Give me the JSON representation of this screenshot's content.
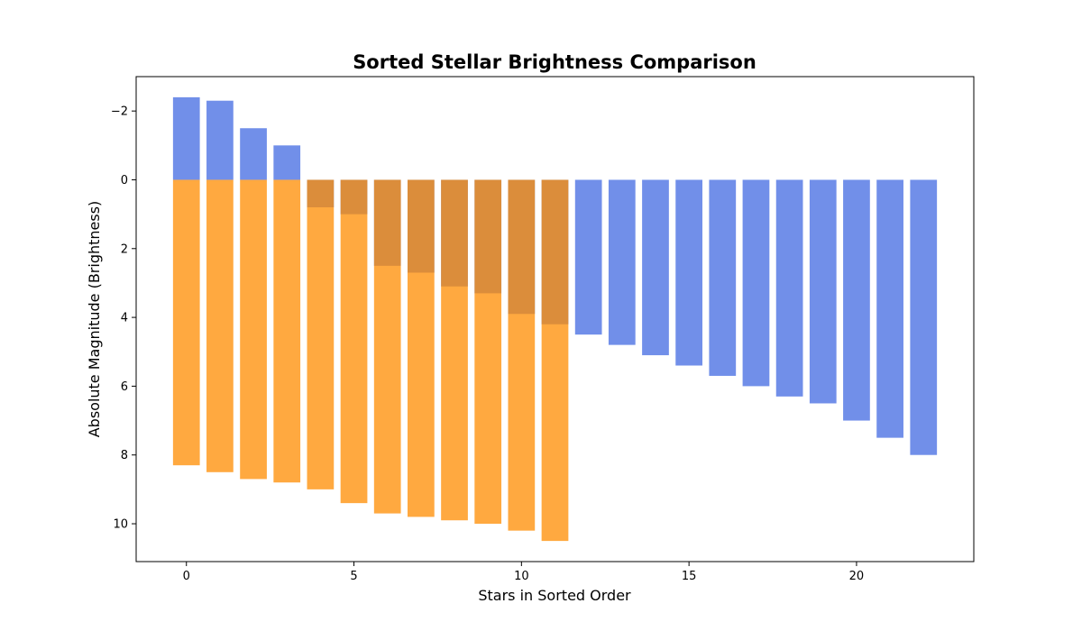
{
  "colors": {
    "series_a": "#4169E1",
    "series_b": "#FF8C00",
    "background": "#ffffff",
    "axes": "#000000"
  },
  "chart_data": {
    "type": "bar",
    "title": "Sorted Stellar Brightness Comparison",
    "xlabel": "Stars in Sorted Order",
    "ylabel": "Absolute Magnitude (Brightness)",
    "y_inverted": true,
    "xlim": [
      -1.5,
      23.5
    ],
    "ylim": [
      11.1,
      -3.0
    ],
    "xticks": [
      0,
      5,
      10,
      15,
      20
    ],
    "xtick_labels": [
      "0",
      "5",
      "10",
      "15",
      "20"
    ],
    "yticks": [
      -2,
      0,
      2,
      4,
      6,
      8,
      10
    ],
    "ytick_labels": [
      "−2",
      "0",
      "2",
      "4",
      "6",
      "8",
      "10"
    ],
    "grid": false,
    "series": [
      {
        "color": "#4169E1",
        "opacity": 0.75,
        "x": [
          0,
          1,
          2,
          3,
          4,
          5,
          6,
          7,
          8,
          9,
          10,
          11,
          12,
          13,
          14,
          15,
          16,
          17,
          18,
          19,
          20,
          21,
          22
        ],
        "values": [
          -2.4,
          -2.3,
          -1.5,
          -1.0,
          0.8,
          1.0,
          2.5,
          2.7,
          3.1,
          3.3,
          3.9,
          4.2,
          4.5,
          4.8,
          5.1,
          5.4,
          5.7,
          6.0,
          6.3,
          6.5,
          7.0,
          7.5,
          8.0
        ]
      },
      {
        "color": "#FF8C00",
        "opacity": 0.75,
        "x": [
          0,
          1,
          2,
          3,
          4,
          5,
          6,
          7,
          8,
          9,
          10,
          11
        ],
        "values": [
          8.3,
          8.5,
          8.7,
          8.8,
          9.0,
          9.4,
          9.7,
          9.8,
          9.9,
          10.0,
          10.2,
          10.5
        ]
      }
    ]
  }
}
